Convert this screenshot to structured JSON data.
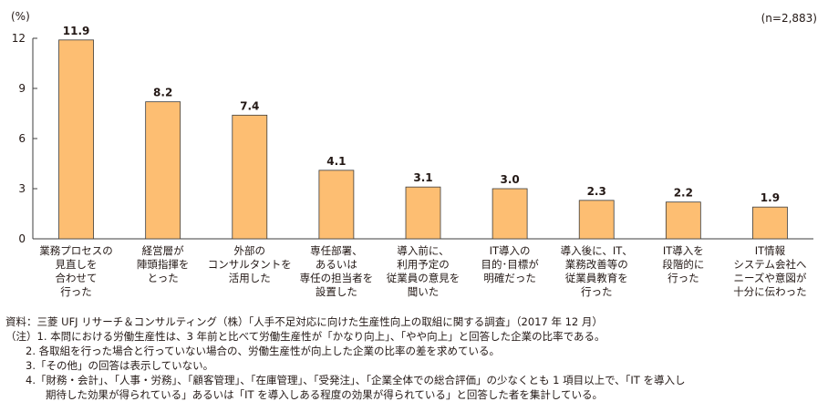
{
  "chart_data": {
    "type": "bar",
    "unit_label": "(%)",
    "sample_note": "(n=2,883)",
    "ylim": [
      0,
      12
    ],
    "yticks": [
      "0",
      "3",
      "6",
      "9",
      "12"
    ],
    "categories": [
      [
        "業務プロセスの",
        "見直しを",
        "合わせて",
        "行った"
      ],
      [
        "経営層が",
        "陣頭指揮を",
        "とった"
      ],
      [
        "外部の",
        "コンサルタントを",
        "活用した"
      ],
      [
        "専任部署、",
        "あるいは",
        "専任の担当者を",
        "設置した"
      ],
      [
        "導入前に、",
        "利用予定の",
        "従業員の意見を",
        "聞いた"
      ],
      [
        "IT導入の",
        "目的･目標が",
        "明確だった"
      ],
      [
        "導入後に、IT、",
        "業務改善等の",
        "従業員教育を",
        "行った"
      ],
      [
        "IT導入を",
        "段階的に",
        "行った"
      ],
      [
        "IT情報",
        "システム会社へ",
        "ニーズや意図が",
        "十分に伝わった"
      ]
    ],
    "values": [
      11.9,
      8.2,
      7.4,
      4.1,
      3.1,
      3.0,
      2.3,
      2.2,
      1.9
    ],
    "value_labels": [
      "11.9",
      "8.2",
      "7.4",
      "4.1",
      "3.1",
      "3.0",
      "2.3",
      "2.2",
      "1.9"
    ],
    "colors": {
      "bar_fill": "#FDBE72",
      "bar_stroke": "#3d3d3d",
      "axis": "#3d3d3d",
      "text": "#231815"
    }
  },
  "notes": {
    "source": "資料：三菱 UFJ リサーチ＆コンサルティング（株）「人手不足対応に向けた生産性向上の取組に関する調査」（2017 年 12 月）",
    "note1": "（注）1. 本問における労働生産性は、3 年前と比べて労働生産性が「かなり向上」、「やや向上」と回答した企業の比率である。",
    "note2": "2. 各取組を行った場合と行っていない場合の、労働生産性が向上した企業の比率の差を求めている。",
    "note3": "3.「その他」の回答は表示していない。",
    "note4a": "4.「財務・会計」、「人事・労務」、「顧客管理」、「在庫管理」、「受発注」、「企業全体での総合評価」の少なくとも 1 項目以上で、「IT を導入し",
    "note4b": "期待した効果が得られている」あるいは「IT を導入しある程度の効果が得られている」と回答した者を集計している。"
  }
}
